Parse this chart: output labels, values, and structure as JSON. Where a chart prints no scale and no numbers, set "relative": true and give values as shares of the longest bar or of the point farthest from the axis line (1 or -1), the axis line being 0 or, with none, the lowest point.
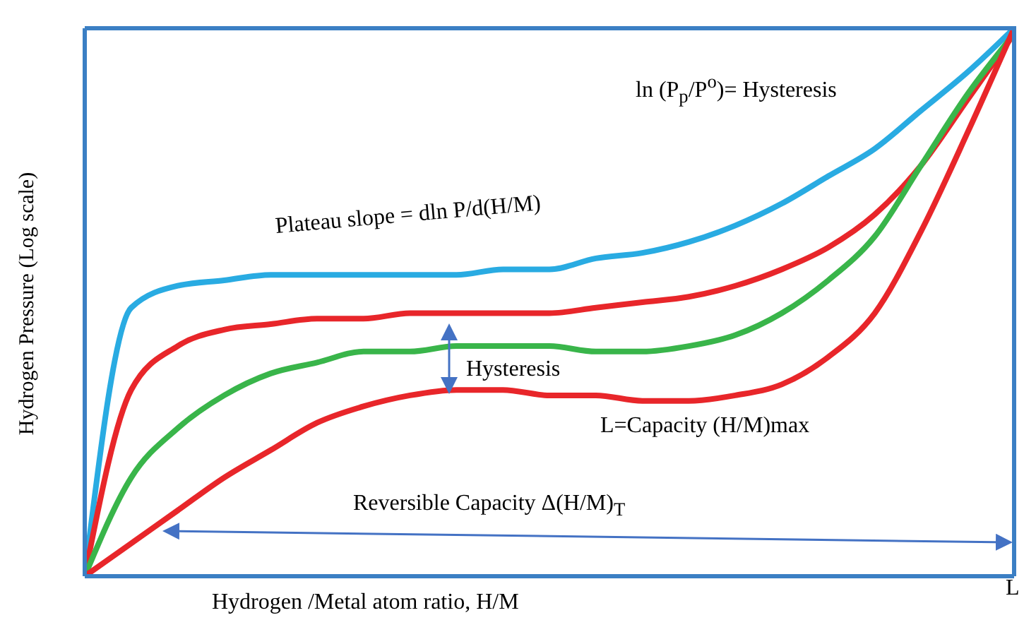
{
  "chart_data": {
    "type": "line",
    "relative": true,
    "marker": "none",
    "line_style": "solid",
    "xlabel": "Hydrogen /Metal atom ratio, H/M",
    "ylabel": "Hydrogen Pressure (Log scale)",
    "annotations": [
      "ln (P$_{p}$/P$^{o}$)= Hysteresis",
      "Plateau slope = dln P/d(H/M)",
      "Hysteresis",
      "L=Capacity (H/M)max",
      "Reversible Capacity Δ(H/M)$_{T}$",
      "L"
    ],
    "categories": [
      null,
      null,
      null,
      null,
      null,
      null,
      null,
      null,
      null,
      null,
      null,
      null,
      null,
      null,
      null,
      null,
      null,
      null,
      null,
      null,
      null
    ],
    "series": [
      {
        "color": "#29abe2",
        "values": [
          0,
          0.49,
          0.53,
          0.54,
          0.55,
          0.55,
          0.55,
          0.55,
          0.55,
          0.56,
          0.56,
          0.58,
          0.59,
          0.61,
          0.64,
          0.68,
          0.73,
          0.78,
          0.85,
          0.92,
          1
        ]
      },
      {
        "color": "#e8262a",
        "values": [
          0,
          0.34,
          0.42,
          0.45,
          0.46,
          0.47,
          0.47,
          0.48,
          0.48,
          0.48,
          0.48,
          0.49,
          0.5,
          0.51,
          0.53,
          0.56,
          0.6,
          0.66,
          0.75,
          0.87,
          0.99
        ]
      },
      {
        "color": "#39b54a",
        "values": [
          0,
          0.18,
          0.27,
          0.33,
          0.37,
          0.39,
          0.41,
          0.41,
          0.42,
          0.42,
          0.42,
          0.41,
          0.41,
          0.42,
          0.44,
          0.48,
          0.54,
          0.62,
          0.75,
          0.88,
          0.99
        ]
      },
      {
        "color": "#e8262a",
        "values": [
          0,
          0.06,
          0.12,
          0.18,
          0.23,
          0.28,
          0.31,
          0.33,
          0.34,
          0.34,
          0.33,
          0.33,
          0.32,
          0.32,
          0.33,
          0.35,
          0.4,
          0.48,
          0.63,
          0.81,
          1
        ]
      }
    ]
  }
}
